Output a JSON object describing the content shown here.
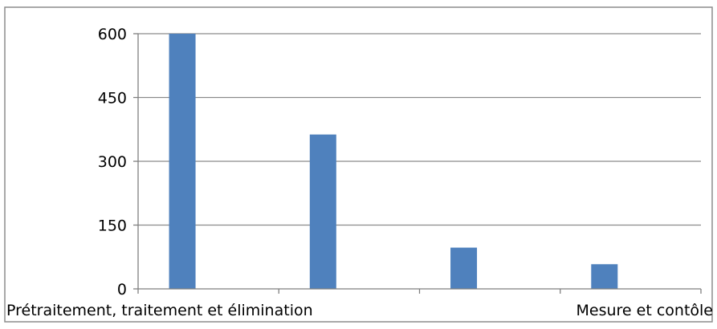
{
  "chart_data": {
    "type": "bar",
    "title": "",
    "xlabel": "",
    "ylabel": "",
    "ylim": [
      0,
      600
    ],
    "yticks": [
      0,
      150,
      300,
      450,
      600
    ],
    "categories": [
      "Prétraitement, traitement et élimination",
      "",
      "",
      "Mesure et contôle"
    ],
    "series": [
      {
        "values": [
          600,
          363,
          97,
          58
        ]
      }
    ],
    "grid": true,
    "legend": "none",
    "bar_color": "#4f81bd",
    "grid_color": "#8c8c8c"
  }
}
